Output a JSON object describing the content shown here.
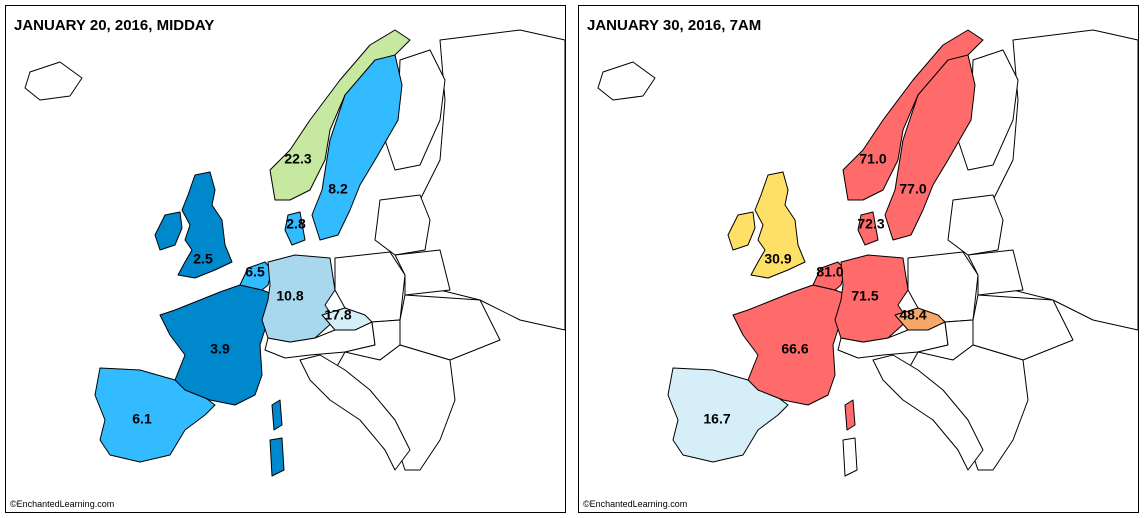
{
  "panels": [
    {
      "title": "JANUARY 20, 2016, MIDDAY",
      "labels": [
        "22.3",
        "8.2",
        "2.8",
        "2.5",
        "6.5",
        "10.8",
        "17.8",
        "3.9",
        "6.1"
      ],
      "credit": "©EnchantedLearning.com"
    },
    {
      "title": "JANUARY 30, 2016, 7AM",
      "labels": [
        "71.0",
        "77.0",
        "72.3",
        "30.9",
        "81.0",
        "71.5",
        "48.4",
        "66.6",
        "16.7"
      ],
      "credit": "©EnchantedLearning.com"
    }
  ]
}
